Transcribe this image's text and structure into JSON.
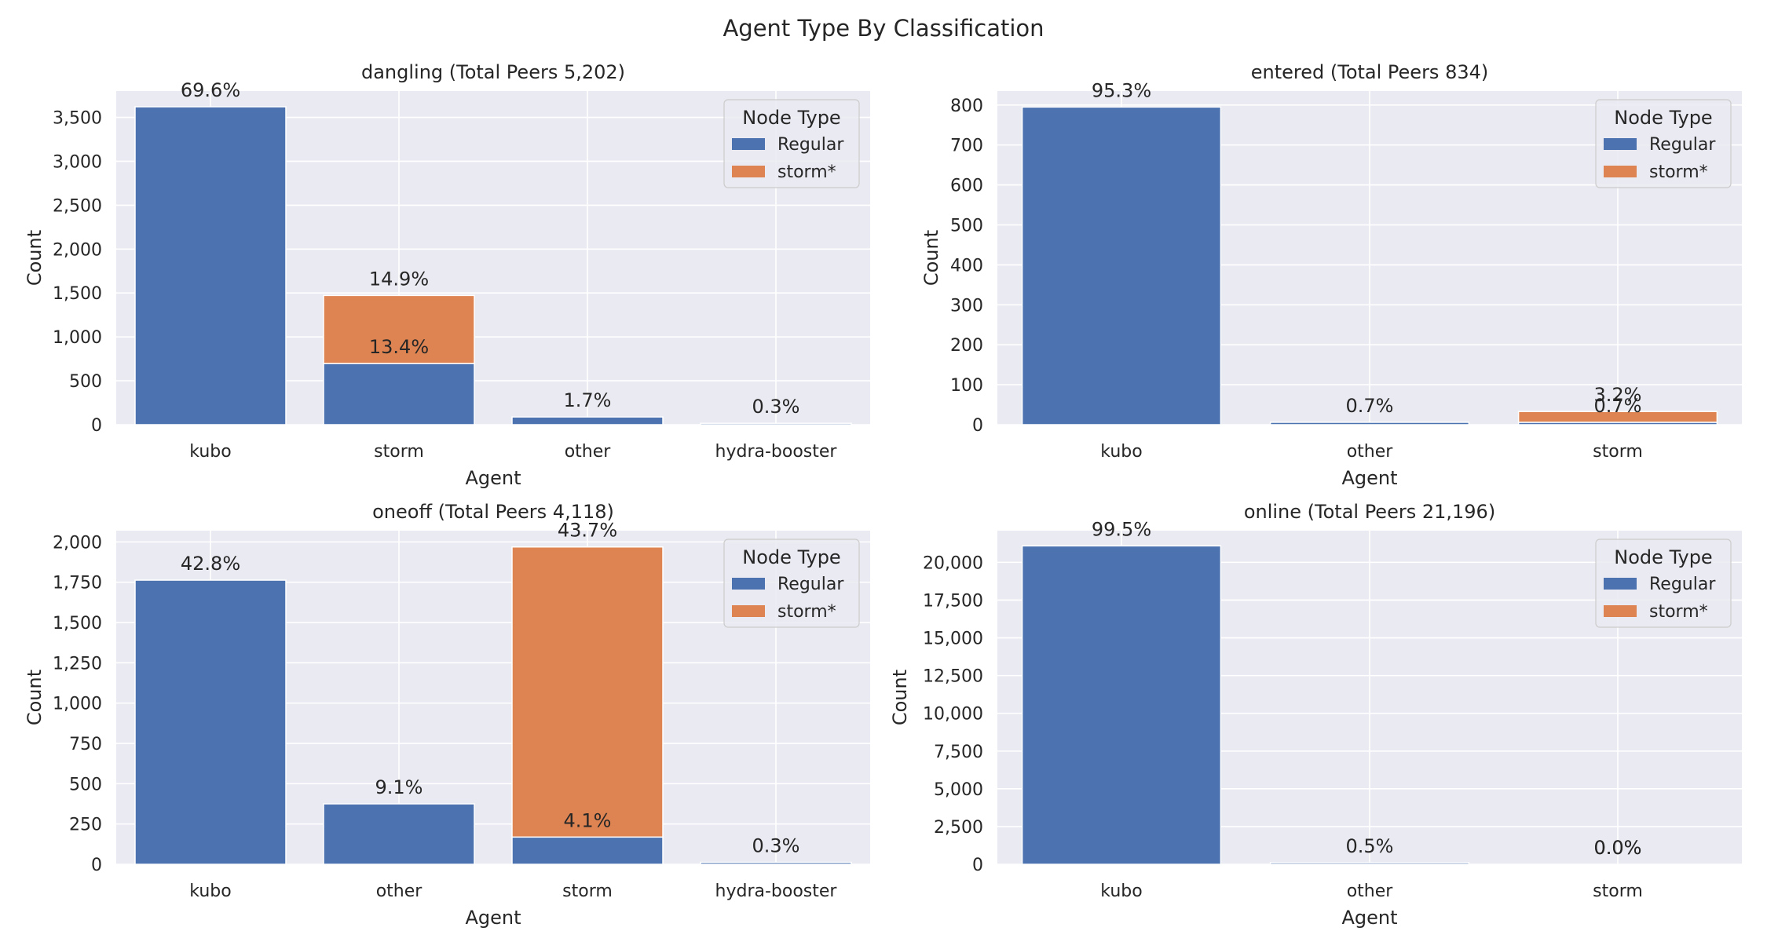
{
  "figure": {
    "title": "Agent Type By Classification"
  },
  "colors": {
    "Regular": "#4c72b0",
    "storm*": "#dd8452",
    "background": "#eaeaf2",
    "grid": "#ffffff",
    "text": "#262626"
  },
  "chart_data": [
    {
      "type": "bar",
      "title": "dangling (Total Peers 5,202)",
      "xlabel": "Agent",
      "ylabel": "Count",
      "categories": [
        "kubo",
        "storm",
        "other",
        "hydra-booster"
      ],
      "ylim": [
        0,
        3800
      ],
      "yticks": [
        0,
        500,
        1000,
        1500,
        2000,
        2500,
        3000,
        3500
      ],
      "ytick_labels": [
        "0",
        "500",
        "1,000",
        "1,500",
        "2,000",
        "2,500",
        "3,000",
        "3,500"
      ],
      "series": [
        {
          "name": "Regular",
          "values": [
            3621,
            697,
            88,
            16
          ]
        },
        {
          "name": "storm*",
          "values": [
            0,
            775,
            0,
            0
          ]
        }
      ],
      "annotations": [
        {
          "category": "kubo",
          "text": "69.6%",
          "y": 3621
        },
        {
          "category": "storm",
          "text": "14.9%",
          "y": 1472
        },
        {
          "category": "storm",
          "text": "13.4%",
          "y": 697
        },
        {
          "category": "other",
          "text": "1.7%",
          "y": 88
        },
        {
          "category": "hydra-booster",
          "text": "0.3%",
          "y": 16
        }
      ],
      "legend": {
        "title": "Node Type",
        "position": "top-right",
        "entries": [
          "Regular",
          "storm*"
        ]
      }
    },
    {
      "type": "bar",
      "title": "entered (Total Peers 834)",
      "xlabel": "Agent",
      "ylabel": "Count",
      "categories": [
        "kubo",
        "other",
        "storm"
      ],
      "ylim": [
        0,
        835
      ],
      "yticks": [
        0,
        100,
        200,
        300,
        400,
        500,
        600,
        700,
        800
      ],
      "ytick_labels": [
        "0",
        "100",
        "200",
        "300",
        "400",
        "500",
        "600",
        "700",
        "800"
      ],
      "series": [
        {
          "name": "Regular",
          "values": [
            795,
            6,
            6
          ]
        },
        {
          "name": "storm*",
          "values": [
            0,
            0,
            27
          ]
        }
      ],
      "annotations": [
        {
          "category": "kubo",
          "text": "95.3%",
          "y": 795
        },
        {
          "category": "other",
          "text": "0.7%",
          "y": 6
        },
        {
          "category": "storm",
          "text": "3.2%",
          "y": 33
        },
        {
          "category": "storm",
          "text": "0.7%",
          "y": 6
        }
      ],
      "legend": {
        "title": "Node Type",
        "position": "top-right",
        "entries": [
          "Regular",
          "storm*"
        ]
      }
    },
    {
      "type": "bar",
      "title": "oneoff (Total Peers 4,118)",
      "xlabel": "Agent",
      "ylabel": "Count",
      "categories": [
        "kubo",
        "other",
        "storm",
        "hydra-booster"
      ],
      "ylim": [
        0,
        2070
      ],
      "yticks": [
        0,
        250,
        500,
        750,
        1000,
        1250,
        1500,
        1750,
        2000
      ],
      "ytick_labels": [
        "0",
        "250",
        "500",
        "750",
        "1,000",
        "1,250",
        "1,500",
        "1,750",
        "2,000"
      ],
      "series": [
        {
          "name": "Regular",
          "values": [
            1763,
            375,
            169,
            12
          ]
        },
        {
          "name": "storm*",
          "values": [
            0,
            0,
            1800,
            0
          ]
        }
      ],
      "annotations": [
        {
          "category": "kubo",
          "text": "42.8%",
          "y": 1763
        },
        {
          "category": "other",
          "text": "9.1%",
          "y": 375
        },
        {
          "category": "storm",
          "text": "43.7%",
          "y": 1969
        },
        {
          "category": "storm",
          "text": "4.1%",
          "y": 169
        },
        {
          "category": "hydra-booster",
          "text": "0.3%",
          "y": 12
        }
      ],
      "legend": {
        "title": "Node Type",
        "position": "top-right",
        "entries": [
          "Regular",
          "storm*"
        ]
      }
    },
    {
      "type": "bar",
      "title": "online (Total Peers 21,196)",
      "xlabel": "Agent",
      "ylabel": "Count",
      "categories": [
        "kubo",
        "other",
        "storm"
      ],
      "ylim": [
        0,
        22100
      ],
      "yticks": [
        0,
        2500,
        5000,
        7500,
        10000,
        12500,
        15000,
        17500,
        20000
      ],
      "ytick_labels": [
        "0",
        "2,500",
        "5,000",
        "7,500",
        "10,000",
        "12,500",
        "15,000",
        "17,500",
        "20,000"
      ],
      "series": [
        {
          "name": "Regular",
          "values": [
            21091,
            106,
            0
          ]
        },
        {
          "name": "storm*",
          "values": [
            0,
            0,
            0
          ]
        }
      ],
      "annotations": [
        {
          "category": "kubo",
          "text": "99.5%",
          "y": 21091
        },
        {
          "category": "other",
          "text": "0.5%",
          "y": 106
        },
        {
          "category": "storm",
          "text": "0.0%",
          "y": 0
        },
        {
          "category": "storm",
          "text": "0.0%",
          "y": 0
        }
      ],
      "legend": {
        "title": "Node Type",
        "position": "top-right",
        "entries": [
          "Regular",
          "storm*"
        ]
      }
    }
  ]
}
